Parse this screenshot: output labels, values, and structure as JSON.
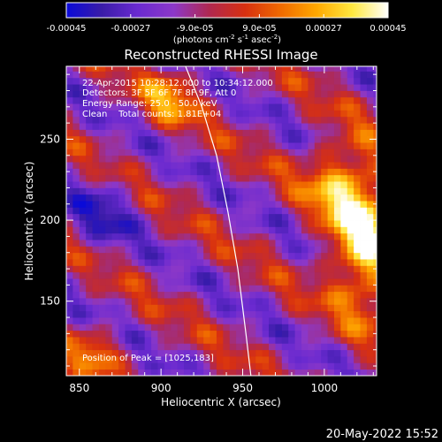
{
  "chart_data": {
    "type": "heatmap",
    "title": "Reconstructed RHESSI Image",
    "xlabel": "Heliocentric X (arcsec)",
    "ylabel": "Heliocentric Y (arcsec)",
    "xlim": [
      842,
      1032
    ],
    "ylim": [
      104,
      295
    ],
    "xticks": [
      850,
      900,
      950,
      1000
    ],
    "yticks": [
      150,
      200,
      250
    ],
    "colorbar": {
      "range": [
        -0.00045,
        0.00045
      ],
      "ticks": [
        "-0.00045",
        "-0.00027",
        "-9.0e-05",
        "9.0e-05",
        "0.00027",
        "0.00045"
      ],
      "units_prefix": "(photons cm",
      "units_sup1": "-2",
      "units_mid1": " s",
      "units_sup2": "-1",
      "units_mid2": " asec",
      "units_sup3": "-2",
      "units_suffix": ")",
      "colormap": [
        "#0a0ad8",
        "#3a1ca8",
        "#6a2ad0",
        "#8c38c8",
        "#b02850",
        "#d83010",
        "#f06a00",
        "#ffa800",
        "#ffe840",
        "#ffffff"
      ]
    },
    "annotations": [
      "22-Apr-2015 10:28:12.000 to 10:34:12.000",
      "Detectors: 3F 5F 6F 7F 8F 9F, Att 0",
      "Energy Range: 25.0 - 50.0 keV",
      "Clean    Total counts: 1.81E+04"
    ],
    "peak_label": "Position of Peak = [1025,183]",
    "peak": [
      1025,
      183
    ],
    "limb_curve": [
      [
        915,
        295
      ],
      [
        925,
        270
      ],
      [
        934,
        240
      ],
      [
        941,
        205
      ],
      [
        947,
        170
      ],
      [
        952,
        130
      ],
      [
        955,
        104
      ]
    ],
    "grid": false
  },
  "footer_timestamp": "20-May-2022 15:52"
}
